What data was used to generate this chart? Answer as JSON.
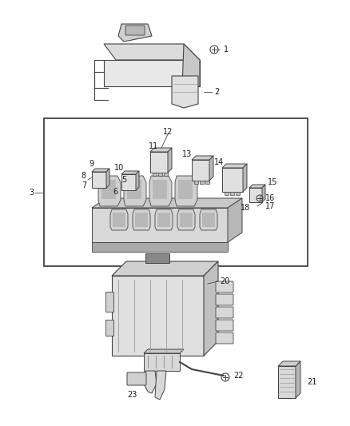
{
  "background_color": "#ffffff",
  "fig_width": 4.38,
  "fig_height": 5.33,
  "dpi": 100,
  "text_color": "#1a1a1a",
  "label_fontsize": 7.0,
  "line_color": "#444444",
  "gray_light": "#e8e8e8",
  "gray_mid": "#c8c8c8",
  "gray_dark": "#999999",
  "border_color": "#333333"
}
